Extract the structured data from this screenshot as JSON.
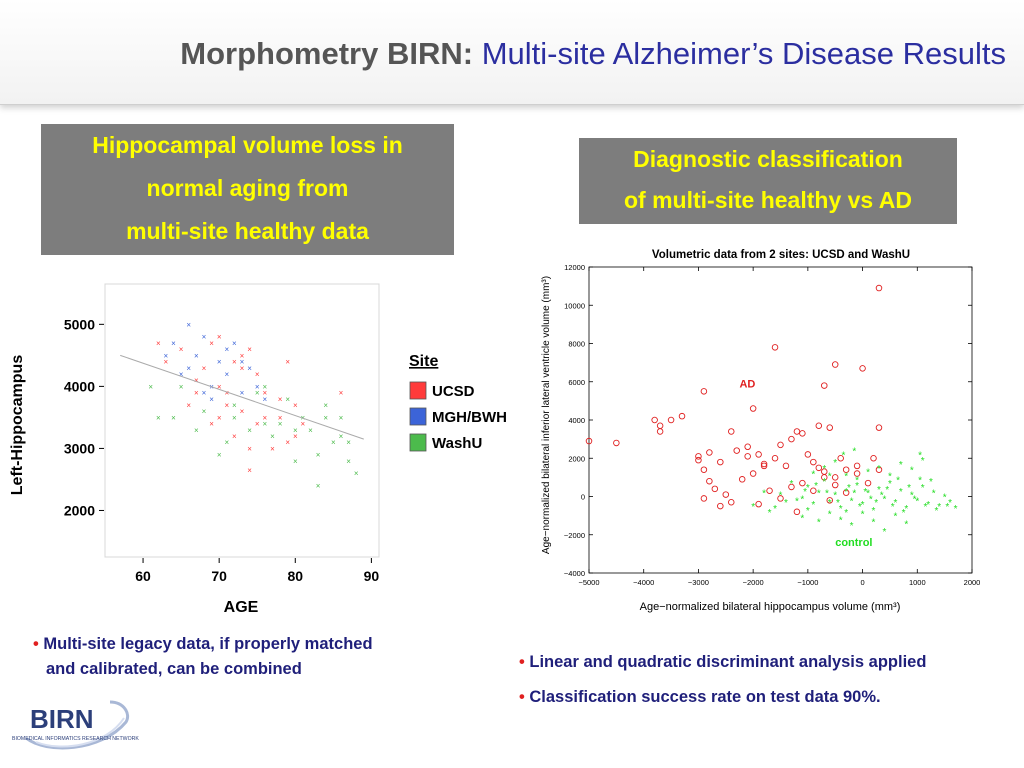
{
  "title": {
    "bold": "Morphometry BIRN:",
    "rest": "Multi-site Alzheimer’s Disease Results"
  },
  "left_box": {
    "lines": [
      "Hippocampal volume loss in",
      "normal aging from",
      "multi-site healthy data"
    ]
  },
  "right_box": {
    "lines": [
      "Diagnostic classification",
      "of multi-site healthy vs AD"
    ]
  },
  "left_bullets": {
    "line1": "Multi-site legacy data, if properly matched",
    "line2": "and calibrated, can be combined"
  },
  "right_bullets": [
    "Linear and quadratic discriminant analysis applied",
    "Classification success rate on test data 90%."
  ],
  "logo": {
    "text": "BIRN",
    "subtitle": "BIOMEDICAL INFORMATICS RESEARCH NETWORK"
  },
  "colors": {
    "ucsd": "#ff3b3b",
    "mgh": "#3c64d8",
    "washu": "#4cbb4c",
    "ad": "#e02020",
    "control": "#22dd22",
    "title_blue": "#2b2ea0",
    "box_text": "#ffff00"
  },
  "chart_data": [
    {
      "type": "scatter",
      "title": "",
      "xlabel": "AGE",
      "ylabel": "Left-Hippocampus",
      "xlim": [
        55,
        91
      ],
      "ylim": [
        1250,
        5650
      ],
      "xticks": [
        60,
        70,
        80,
        90
      ],
      "yticks": [
        2000,
        3000,
        4000,
        5000
      ],
      "legend": {
        "title": "Site",
        "placement": "right"
      },
      "trend_line": {
        "x": [
          57,
          89
        ],
        "y": [
          4500,
          3150
        ]
      },
      "series": [
        {
          "name": "UCSD",
          "marker": "x",
          "points": [
            [
              62,
              4700
            ],
            [
              63,
              4400
            ],
            [
              65,
              4600
            ],
            [
              67,
              3900
            ],
            [
              68,
              4300
            ],
            [
              69,
              4700
            ],
            [
              70,
              4800
            ],
            [
              70,
              4000
            ],
            [
              71,
              3700
            ],
            [
              72,
              4400
            ],
            [
              73,
              4300
            ],
            [
              74,
              4600
            ],
            [
              75,
              4200
            ],
            [
              76,
              3900
            ],
            [
              78,
              3800
            ],
            [
              79,
              4400
            ],
            [
              80,
              3700
            ],
            [
              81,
              3400
            ],
            [
              70,
              3500
            ],
            [
              72,
              3200
            ],
            [
              75,
              3400
            ],
            [
              77,
              3000
            ],
            [
              79,
              3100
            ],
            [
              69,
              3400
            ],
            [
              71,
              3900
            ],
            [
              73,
              3600
            ],
            [
              74,
              3000
            ],
            [
              76,
              3500
            ],
            [
              86,
              3900
            ],
            [
              73,
              4500
            ],
            [
              67,
              4100
            ],
            [
              66,
              3700
            ],
            [
              80,
              3200
            ],
            [
              78,
              3500
            ],
            [
              74,
              2650
            ]
          ]
        },
        {
          "name": "MGH/BWH",
          "marker": "x",
          "points": [
            [
              63,
              4500
            ],
            [
              65,
              4200
            ],
            [
              66,
              5000
            ],
            [
              67,
              4500
            ],
            [
              68,
              4800
            ],
            [
              69,
              4000
            ],
            [
              70,
              4400
            ],
            [
              71,
              4200
            ],
            [
              72,
              4700
            ],
            [
              73,
              4400
            ],
            [
              75,
              4000
            ],
            [
              76,
              3800
            ],
            [
              74,
              4300
            ],
            [
              69,
              3800
            ],
            [
              71,
              4600
            ],
            [
              66,
              4300
            ],
            [
              68,
              3900
            ],
            [
              73,
              3900
            ],
            [
              64,
              4700
            ]
          ]
        },
        {
          "name": "WashU",
          "marker": "x",
          "points": [
            [
              61,
              4000
            ],
            [
              62,
              3500
            ],
            [
              64,
              3500
            ],
            [
              65,
              4000
            ],
            [
              67,
              3300
            ],
            [
              68,
              3600
            ],
            [
              70,
              2900
            ],
            [
              71,
              3100
            ],
            [
              72,
              3500
            ],
            [
              74,
              3300
            ],
            [
              75,
              3900
            ],
            [
              76,
              4000
            ],
            [
              77,
              3200
            ],
            [
              78,
              3400
            ],
            [
              80,
              2800
            ],
            [
              81,
              3500
            ],
            [
              82,
              3300
            ],
            [
              83,
              2900
            ],
            [
              84,
              3700
            ],
            [
              85,
              3100
            ],
            [
              86,
              3500
            ],
            [
              87,
              3100
            ],
            [
              88,
              2600
            ],
            [
              83,
              2400
            ],
            [
              76,
              3400
            ],
            [
              79,
              3800
            ],
            [
              72,
              3700
            ],
            [
              80,
              3300
            ],
            [
              84,
              3500
            ],
            [
              86,
              3200
            ],
            [
              87,
              2800
            ]
          ]
        }
      ]
    },
    {
      "type": "scatter",
      "title": "Volumetric data from 2 sites: UCSD and WashU",
      "xlabel": "Age−normalized bilateral hippocampus volume (mm³)",
      "ylabel": "Age−normalized bilateral inferior lateral ventricle volume (mm³)",
      "xlim": [
        -5000,
        2000
      ],
      "ylim": [
        -4000,
        12000
      ],
      "xticks": [
        -5000,
        -4000,
        -3000,
        -2000,
        -1000,
        0,
        1000,
        2000
      ],
      "yticks": [
        -4000,
        -2000,
        0,
        2000,
        4000,
        6000,
        8000,
        10000,
        12000
      ],
      "grid": false,
      "annotations": [
        {
          "text": "AD",
          "x": -2250,
          "y": 5700
        },
        {
          "text": "control",
          "x": -500,
          "y": -2600
        }
      ],
      "series": [
        {
          "name": "AD",
          "marker": "o",
          "points": [
            [
              300,
              10900
            ],
            [
              -1600,
              7800
            ],
            [
              -500,
              6900
            ],
            [
              0,
              6700
            ],
            [
              -700,
              5800
            ],
            [
              -2900,
              5500
            ],
            [
              -2000,
              4600
            ],
            [
              -3800,
              4000
            ],
            [
              -3500,
              4000
            ],
            [
              -3300,
              4200
            ],
            [
              -3700,
              3700
            ],
            [
              -3700,
              3400
            ],
            [
              -2400,
              3400
            ],
            [
              -1200,
              3400
            ],
            [
              -800,
              3700
            ],
            [
              -600,
              3600
            ],
            [
              300,
              3600
            ],
            [
              -5000,
              2900
            ],
            [
              -4500,
              2800
            ],
            [
              -3000,
              2100
            ],
            [
              -2800,
              2300
            ],
            [
              -2600,
              1800
            ],
            [
              -2300,
              2400
            ],
            [
              -2100,
              2600
            ],
            [
              -1900,
              2200
            ],
            [
              -1800,
              1700
            ],
            [
              -1600,
              2000
            ],
            [
              -1400,
              1600
            ],
            [
              -1300,
              3000
            ],
            [
              -1000,
              2200
            ],
            [
              -900,
              1800
            ],
            [
              -700,
              1300
            ],
            [
              -500,
              1000
            ],
            [
              -300,
              1400
            ],
            [
              -100,
              1600
            ],
            [
              -2800,
              800
            ],
            [
              -2700,
              400
            ],
            [
              -2500,
              100
            ],
            [
              -2400,
              -300
            ],
            [
              -2200,
              900
            ],
            [
              -2000,
              1200
            ],
            [
              -1900,
              -400
            ],
            [
              -1700,
              300
            ],
            [
              -1500,
              -100
            ],
            [
              -1300,
              500
            ],
            [
              -1100,
              700
            ],
            [
              -900,
              300
            ],
            [
              -700,
              1000
            ],
            [
              -500,
              600
            ],
            [
              -300,
              200
            ],
            [
              -100,
              1200
            ],
            [
              100,
              700
            ],
            [
              300,
              1400
            ],
            [
              -1200,
              -800
            ],
            [
              -2600,
              -500
            ],
            [
              -2900,
              1400
            ],
            [
              -3000,
              1900
            ],
            [
              -2100,
              2100
            ],
            [
              -1500,
              2700
            ],
            [
              -1100,
              3300
            ],
            [
              -400,
              2000
            ],
            [
              -2900,
              -100
            ],
            [
              -1800,
              1600
            ],
            [
              -600,
              -200
            ],
            [
              200,
              2000
            ],
            [
              -800,
              1500
            ]
          ]
        },
        {
          "name": "control",
          "marker": "*",
          "points": [
            [
              -1100,
              -100
            ],
            [
              -1000,
              500
            ],
            [
              -900,
              -400
            ],
            [
              -800,
              200
            ],
            [
              -700,
              800
            ],
            [
              -600,
              -300
            ],
            [
              -500,
              100
            ],
            [
              -400,
              -600
            ],
            [
              -300,
              300
            ],
            [
              -200,
              -200
            ],
            [
              -100,
              600
            ],
            [
              0,
              -400
            ],
            [
              100,
              200
            ],
            [
              200,
              -700
            ],
            [
              300,
              400
            ],
            [
              400,
              -100
            ],
            [
              500,
              700
            ],
            [
              600,
              -300
            ],
            [
              700,
              300
            ],
            [
              800,
              -600
            ],
            [
              900,
              100
            ],
            [
              1000,
              -200
            ],
            [
              1100,
              500
            ],
            [
              1200,
              -400
            ],
            [
              1300,
              200
            ],
            [
              1400,
              -500
            ],
            [
              1500,
              0
            ],
            [
              1600,
              -300
            ],
            [
              1700,
              -600
            ],
            [
              -900,
              1200
            ],
            [
              -700,
              1500
            ],
            [
              -500,
              1800
            ],
            [
              -300,
              1100
            ],
            [
              -100,
              900
            ],
            [
              100,
              1300
            ],
            [
              300,
              1500
            ],
            [
              500,
              1100
            ],
            [
              700,
              1700
            ],
            [
              900,
              1400
            ],
            [
              1100,
              1900
            ],
            [
              -600,
              -900
            ],
            [
              -400,
              -1200
            ],
            [
              -200,
              -1500
            ],
            [
              0,
              -900
            ],
            [
              200,
              -1300
            ],
            [
              400,
              -1800
            ],
            [
              600,
              -1000
            ],
            [
              800,
              -1400
            ],
            [
              -1000,
              -700
            ],
            [
              -1200,
              -200
            ],
            [
              -1400,
              -300
            ],
            [
              -1600,
              -600
            ],
            [
              -1800,
              200
            ],
            [
              -2000,
              -500
            ],
            [
              -1700,
              -800
            ],
            [
              -1100,
              -1100
            ],
            [
              -800,
              -1300
            ],
            [
              -300,
              -800
            ],
            [
              -50,
              -500
            ],
            [
              150,
              -100
            ],
            [
              350,
              100
            ],
            [
              550,
              -500
            ],
            [
              750,
              -800
            ],
            [
              950,
              -100
            ],
            [
              1150,
              -500
            ],
            [
              1350,
              -700
            ],
            [
              1550,
              -500
            ],
            [
              -250,
              500
            ],
            [
              -150,
              200
            ],
            [
              50,
              300
            ],
            [
              250,
              -300
            ],
            [
              450,
              400
            ],
            [
              650,
              900
            ],
            [
              850,
              500
            ],
            [
              1050,
              900
            ],
            [
              1250,
              800
            ],
            [
              -450,
              -300
            ],
            [
              -650,
              200
            ],
            [
              -850,
              600
            ],
            [
              -1050,
              300
            ],
            [
              -350,
              2200
            ],
            [
              -150,
              2400
            ],
            [
              1050,
              2200
            ],
            [
              -600,
              1100
            ],
            [
              -1300,
              700
            ],
            [
              -1500,
              100
            ]
          ]
        }
      ]
    }
  ]
}
